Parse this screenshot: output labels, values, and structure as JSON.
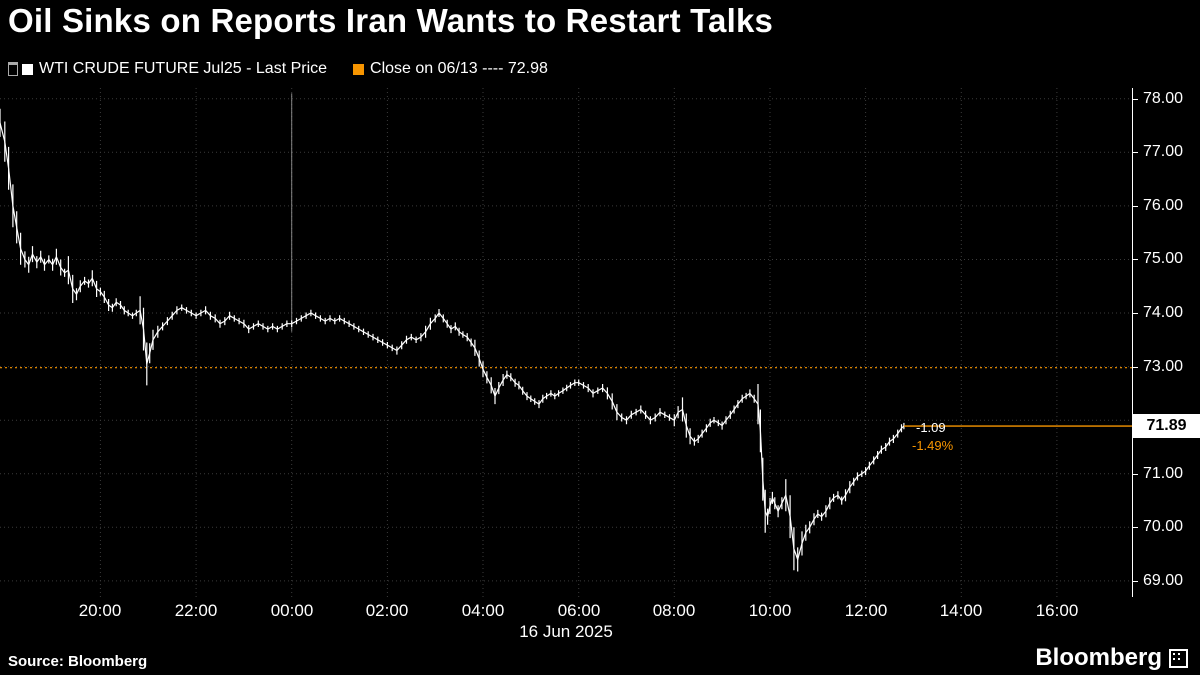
{
  "title": "Oil Sinks on Reports Iran Wants to Restart Talks",
  "legend": {
    "series1": {
      "label": "WTI CRUDE FUTURE Jul25 - Last Price",
      "color": "#ffffff"
    },
    "series2": {
      "label": "Close on 06/13 ---- 72.98",
      "color": "#f79500"
    }
  },
  "last_price": {
    "value": "71.89",
    "net_change": "-1.09",
    "pct_change": "-1.49%"
  },
  "footer": {
    "source": "Source: Bloomberg",
    "logo": "Bloomberg"
  },
  "colors": {
    "background": "#000000",
    "series": "#ffffff",
    "accent_orange": "#f79500",
    "grid": "#3b3b3b",
    "axis": "#ffffff",
    "last_price_box_bg": "#ffffff",
    "last_price_box_text": "#000000"
  },
  "chart_data": {
    "type": "line",
    "title": "Oil Sinks on Reports Iran Wants to Restart Talks",
    "series_name": "WTI CRUDE FUTURE Jul25 - Last Price",
    "date_label": "16 Jun 2025",
    "x_unit": "hours since 18:00 on 15 Jun 2025 (t=6 is 00:00 on 16 Jun 2025)",
    "xlim": [
      -0.1,
      23.57
    ],
    "ylim": [
      68.7,
      78.2
    ],
    "y_ticks": [
      78,
      77,
      76,
      75,
      74,
      73,
      72,
      71,
      70,
      69
    ],
    "y_tick_labels": [
      "78.00",
      "77.00",
      "76.00",
      "75.00",
      "74.00",
      "73.00",
      "72.00",
      "71.00",
      "70.00",
      "69.00"
    ],
    "x_ticks": [
      {
        "t": 2,
        "label": "20:00"
      },
      {
        "t": 4,
        "label": "22:00"
      },
      {
        "t": 6,
        "label": "00:00"
      },
      {
        "t": 8,
        "label": "02:00"
      },
      {
        "t": 10,
        "label": "04:00"
      },
      {
        "t": 12,
        "label": "06:00"
      },
      {
        "t": 14,
        "label": "08:00"
      },
      {
        "t": 16,
        "label": "10:00"
      },
      {
        "t": 18,
        "label": "12:00"
      },
      {
        "t": 20,
        "label": "14:00"
      },
      {
        "t": 22,
        "label": "16:00"
      }
    ],
    "close_line": {
      "label": "Close on 06/13",
      "value": 72.98
    },
    "last_price": 71.89,
    "session_break": {
      "t": 6,
      "top_price": 78.1,
      "bottom_price": 73.65
    },
    "points": [
      [
        -0.1,
        77.55
      ],
      [
        0.0,
        77.2
      ],
      [
        0.08,
        76.7
      ],
      [
        0.17,
        76.0
      ],
      [
        0.25,
        75.6
      ],
      [
        0.33,
        75.2
      ],
      [
        0.42,
        75.0
      ],
      [
        0.5,
        74.9
      ],
      [
        0.58,
        75.1
      ],
      [
        0.67,
        74.95
      ],
      [
        0.75,
        75.05
      ],
      [
        0.83,
        74.9
      ],
      [
        0.92,
        75.0
      ],
      [
        1.0,
        74.9
      ],
      [
        1.08,
        75.05
      ],
      [
        1.17,
        74.85
      ],
      [
        1.25,
        74.75
      ],
      [
        1.33,
        74.8
      ],
      [
        1.42,
        74.45
      ],
      [
        1.5,
        74.35
      ],
      [
        1.58,
        74.5
      ],
      [
        1.67,
        74.6
      ],
      [
        1.75,
        74.55
      ],
      [
        1.83,
        74.65
      ],
      [
        1.92,
        74.45
      ],
      [
        2.0,
        74.4
      ],
      [
        2.08,
        74.3
      ],
      [
        2.17,
        74.15
      ],
      [
        2.25,
        74.1
      ],
      [
        2.33,
        74.2
      ],
      [
        2.42,
        74.15
      ],
      [
        2.5,
        74.05
      ],
      [
        2.58,
        74.0
      ],
      [
        2.67,
        73.95
      ],
      [
        2.75,
        74.0
      ],
      [
        2.83,
        74.05
      ],
      [
        2.9,
        73.7
      ],
      [
        2.97,
        73.05
      ],
      [
        3.03,
        73.25
      ],
      [
        3.1,
        73.5
      ],
      [
        3.2,
        73.65
      ],
      [
        3.3,
        73.75
      ],
      [
        3.4,
        73.85
      ],
      [
        3.5,
        73.95
      ],
      [
        3.6,
        74.05
      ],
      [
        3.7,
        74.1
      ],
      [
        3.8,
        74.05
      ],
      [
        3.9,
        74.0
      ],
      [
        4.0,
        73.95
      ],
      [
        4.1,
        74.0
      ],
      [
        4.2,
        74.05
      ],
      [
        4.3,
        73.95
      ],
      [
        4.4,
        73.9
      ],
      [
        4.5,
        73.8
      ],
      [
        4.6,
        73.85
      ],
      [
        4.7,
        73.95
      ],
      [
        4.8,
        73.9
      ],
      [
        4.9,
        73.85
      ],
      [
        5.0,
        73.8
      ],
      [
        5.1,
        73.7
      ],
      [
        5.2,
        73.75
      ],
      [
        5.3,
        73.8
      ],
      [
        5.4,
        73.75
      ],
      [
        5.5,
        73.7
      ],
      [
        5.6,
        73.75
      ],
      [
        5.7,
        73.7
      ],
      [
        5.8,
        73.75
      ],
      [
        5.9,
        73.8
      ],
      [
        6.0,
        73.8
      ],
      [
        6.1,
        73.85
      ],
      [
        6.2,
        73.9
      ],
      [
        6.3,
        73.95
      ],
      [
        6.4,
        74.0
      ],
      [
        6.5,
        73.95
      ],
      [
        6.6,
        73.9
      ],
      [
        6.7,
        73.85
      ],
      [
        6.8,
        73.9
      ],
      [
        6.9,
        73.85
      ],
      [
        7.0,
        73.9
      ],
      [
        7.1,
        73.85
      ],
      [
        7.2,
        73.8
      ],
      [
        7.3,
        73.75
      ],
      [
        7.4,
        73.7
      ],
      [
        7.5,
        73.65
      ],
      [
        7.6,
        73.6
      ],
      [
        7.7,
        73.55
      ],
      [
        7.8,
        73.5
      ],
      [
        7.9,
        73.45
      ],
      [
        8.0,
        73.4
      ],
      [
        8.1,
        73.35
      ],
      [
        8.2,
        73.3
      ],
      [
        8.3,
        73.4
      ],
      [
        8.4,
        73.5
      ],
      [
        8.5,
        73.55
      ],
      [
        8.6,
        73.5
      ],
      [
        8.7,
        73.55
      ],
      [
        8.8,
        73.65
      ],
      [
        8.9,
        73.8
      ],
      [
        9.0,
        73.9
      ],
      [
        9.08,
        74.0
      ],
      [
        9.17,
        73.9
      ],
      [
        9.25,
        73.8
      ],
      [
        9.33,
        73.7
      ],
      [
        9.42,
        73.75
      ],
      [
        9.5,
        73.65
      ],
      [
        9.58,
        73.6
      ],
      [
        9.67,
        73.55
      ],
      [
        9.75,
        73.45
      ],
      [
        9.83,
        73.35
      ],
      [
        9.92,
        73.15
      ],
      [
        10.0,
        72.95
      ],
      [
        10.08,
        72.8
      ],
      [
        10.17,
        72.65
      ],
      [
        10.25,
        72.45
      ],
      [
        10.33,
        72.6
      ],
      [
        10.42,
        72.75
      ],
      [
        10.5,
        72.85
      ],
      [
        10.58,
        72.8
      ],
      [
        10.67,
        72.7
      ],
      [
        10.75,
        72.65
      ],
      [
        10.83,
        72.55
      ],
      [
        10.92,
        72.45
      ],
      [
        11.0,
        72.4
      ],
      [
        11.08,
        72.35
      ],
      [
        11.17,
        72.3
      ],
      [
        11.25,
        72.4
      ],
      [
        11.33,
        72.45
      ],
      [
        11.42,
        72.5
      ],
      [
        11.5,
        72.45
      ],
      [
        11.58,
        72.5
      ],
      [
        11.67,
        72.55
      ],
      [
        11.75,
        72.6
      ],
      [
        11.83,
        72.65
      ],
      [
        11.92,
        72.7
      ],
      [
        12.0,
        72.7
      ],
      [
        12.1,
        72.65
      ],
      [
        12.2,
        72.6
      ],
      [
        12.3,
        72.5
      ],
      [
        12.4,
        72.55
      ],
      [
        12.5,
        72.6
      ],
      [
        12.6,
        72.5
      ],
      [
        12.7,
        72.35
      ],
      [
        12.8,
        72.15
      ],
      [
        12.9,
        72.05
      ],
      [
        13.0,
        72.0
      ],
      [
        13.1,
        72.1
      ],
      [
        13.2,
        72.15
      ],
      [
        13.3,
        72.2
      ],
      [
        13.4,
        72.1
      ],
      [
        13.5,
        72.0
      ],
      [
        13.6,
        72.05
      ],
      [
        13.7,
        72.15
      ],
      [
        13.8,
        72.1
      ],
      [
        13.9,
        72.05
      ],
      [
        14.0,
        72.0
      ],
      [
        14.08,
        72.15
      ],
      [
        14.17,
        72.2
      ],
      [
        14.25,
        71.9
      ],
      [
        14.33,
        71.7
      ],
      [
        14.42,
        71.6
      ],
      [
        14.5,
        71.65
      ],
      [
        14.58,
        71.75
      ],
      [
        14.67,
        71.85
      ],
      [
        14.75,
        71.95
      ],
      [
        14.83,
        72.0
      ],
      [
        14.92,
        71.95
      ],
      [
        15.0,
        71.9
      ],
      [
        15.08,
        72.0
      ],
      [
        15.17,
        72.1
      ],
      [
        15.25,
        72.2
      ],
      [
        15.33,
        72.3
      ],
      [
        15.42,
        72.4
      ],
      [
        15.5,
        72.45
      ],
      [
        15.58,
        72.5
      ],
      [
        15.67,
        72.4
      ],
      [
        15.75,
        72.3
      ],
      [
        15.8,
        71.8
      ],
      [
        15.85,
        70.9
      ],
      [
        15.9,
        70.3
      ],
      [
        15.95,
        70.2
      ],
      [
        16.0,
        70.4
      ],
      [
        16.05,
        70.55
      ],
      [
        16.1,
        70.45
      ],
      [
        16.17,
        70.3
      ],
      [
        16.25,
        70.45
      ],
      [
        16.33,
        70.6
      ],
      [
        16.42,
        70.2
      ],
      [
        16.5,
        69.6
      ],
      [
        16.58,
        69.4
      ],
      [
        16.67,
        69.7
      ],
      [
        16.75,
        69.9
      ],
      [
        16.83,
        70.0
      ],
      [
        16.92,
        70.15
      ],
      [
        17.0,
        70.25
      ],
      [
        17.08,
        70.2
      ],
      [
        17.17,
        70.3
      ],
      [
        17.25,
        70.45
      ],
      [
        17.33,
        70.55
      ],
      [
        17.42,
        70.6
      ],
      [
        17.5,
        70.5
      ],
      [
        17.58,
        70.6
      ],
      [
        17.67,
        70.75
      ],
      [
        17.75,
        70.85
      ],
      [
        17.83,
        70.95
      ],
      [
        17.92,
        71.0
      ],
      [
        18.0,
        71.05
      ],
      [
        18.08,
        71.15
      ],
      [
        18.17,
        71.25
      ],
      [
        18.25,
        71.35
      ],
      [
        18.33,
        71.45
      ],
      [
        18.42,
        71.5
      ],
      [
        18.5,
        71.6
      ],
      [
        18.58,
        71.65
      ],
      [
        18.67,
        71.75
      ],
      [
        18.75,
        71.85
      ],
      [
        18.8,
        71.89
      ]
    ]
  }
}
